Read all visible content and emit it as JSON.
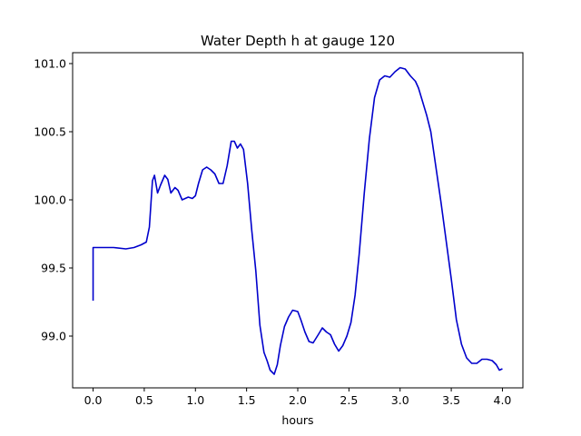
{
  "chart_data": {
    "type": "line",
    "title": "Water Depth h at gauge 120",
    "xlabel": "hours",
    "ylabel": "",
    "xlim": [
      -0.2,
      4.2
    ],
    "ylim": [
      98.62,
      101.08
    ],
    "xticks": [
      0.0,
      0.5,
      1.0,
      1.5,
      2.0,
      2.5,
      3.0,
      3.5,
      4.0
    ],
    "xtick_labels": [
      "0.0",
      "0.5",
      "1.0",
      "1.5",
      "2.0",
      "2.5",
      "3.0",
      "3.5",
      "4.0"
    ],
    "yticks": [
      99.0,
      99.5,
      100.0,
      100.5,
      101.0
    ],
    "ytick_labels": [
      "99.0",
      "99.5",
      "100.0",
      "100.5",
      "101.0"
    ],
    "grid": false,
    "line_color": "#0000cc",
    "series": [
      {
        "x": [
          0.0,
          0.0,
          0.05,
          0.2,
          0.32,
          0.4,
          0.47,
          0.52,
          0.55,
          0.58,
          0.6,
          0.63,
          0.66,
          0.7,
          0.73,
          0.76,
          0.8,
          0.83,
          0.87,
          0.9,
          0.93,
          0.97,
          1.0,
          1.03,
          1.07,
          1.11,
          1.15,
          1.19,
          1.23,
          1.27,
          1.31,
          1.35,
          1.38,
          1.41,
          1.44,
          1.47,
          1.51,
          1.55,
          1.59,
          1.63,
          1.67,
          1.7,
          1.73,
          1.77,
          1.8,
          1.83,
          1.87,
          1.91,
          1.95,
          2.0,
          2.03,
          2.07,
          2.11,
          2.15,
          2.2,
          2.24,
          2.28,
          2.32,
          2.36,
          2.4,
          2.44,
          2.48,
          2.52,
          2.56,
          2.6,
          2.65,
          2.7,
          2.75,
          2.8,
          2.85,
          2.9,
          2.95,
          3.0,
          3.05,
          3.1,
          3.15,
          3.18,
          3.22,
          3.26,
          3.3,
          3.35,
          3.4,
          3.45,
          3.5,
          3.55,
          3.6,
          3.65,
          3.7,
          3.75,
          3.8,
          3.85,
          3.9,
          3.94,
          3.97,
          4.0
        ],
        "y": [
          99.26,
          99.65,
          99.65,
          99.65,
          99.64,
          99.65,
          99.67,
          99.69,
          99.8,
          100.14,
          100.18,
          100.05,
          100.11,
          100.18,
          100.15,
          100.05,
          100.09,
          100.07,
          100.0,
          100.01,
          100.02,
          100.01,
          100.03,
          100.12,
          100.22,
          100.24,
          100.22,
          100.19,
          100.12,
          100.12,
          100.25,
          100.43,
          100.43,
          100.38,
          100.41,
          100.37,
          100.12,
          99.78,
          99.48,
          99.08,
          98.88,
          98.82,
          98.75,
          98.72,
          98.79,
          98.93,
          99.07,
          99.14,
          99.19,
          99.18,
          99.12,
          99.03,
          98.96,
          98.95,
          99.01,
          99.06,
          99.03,
          99.01,
          98.94,
          98.89,
          98.93,
          99.0,
          99.1,
          99.3,
          99.6,
          100.05,
          100.45,
          100.75,
          100.88,
          100.91,
          100.9,
          100.94,
          100.97,
          100.96,
          100.91,
          100.87,
          100.82,
          100.72,
          100.62,
          100.5,
          100.24,
          99.98,
          99.7,
          99.42,
          99.12,
          98.94,
          98.84,
          98.8,
          98.8,
          98.83,
          98.83,
          98.82,
          98.79,
          98.75,
          98.76
        ]
      }
    ]
  }
}
